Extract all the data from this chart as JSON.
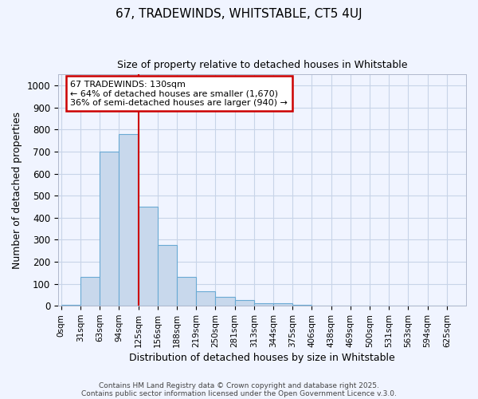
{
  "title1": "67, TRADEWINDS, WHITSTABLE, CT5 4UJ",
  "title2": "Size of property relative to detached houses in Whitstable",
  "xlabel": "Distribution of detached houses by size in Whitstable",
  "ylabel": "Number of detached properties",
  "bin_labels": [
    "0sqm",
    "31sqm",
    "63sqm",
    "94sqm",
    "125sqm",
    "156sqm",
    "188sqm",
    "219sqm",
    "250sqm",
    "281sqm",
    "313sqm",
    "344sqm",
    "375sqm",
    "406sqm",
    "438sqm",
    "469sqm",
    "500sqm",
    "531sqm",
    "563sqm",
    "594sqm",
    "625sqm"
  ],
  "bar_values": [
    5,
    130,
    700,
    780,
    450,
    275,
    130,
    65,
    40,
    25,
    10,
    12,
    5,
    0,
    0,
    0,
    0,
    0,
    0,
    0,
    0
  ],
  "bar_color": "#c8d8ec",
  "bar_edge_color": "#6aaad4",
  "red_line_color": "#cc0000",
  "annotation_text": "67 TRADEWINDS: 130sqm\n← 64% of detached houses are smaller (1,670)\n36% of semi-detached houses are larger (940) →",
  "annotation_box_color": "white",
  "annotation_box_edge": "#cc0000",
  "ylim": [
    0,
    1050
  ],
  "yticks": [
    0,
    100,
    200,
    300,
    400,
    500,
    600,
    700,
    800,
    900,
    1000
  ],
  "footer1": "Contains HM Land Registry data © Crown copyright and database right 2025.",
  "footer2": "Contains public sector information licensed under the Open Government Licence v.3.0.",
  "bg_color": "#f0f4ff",
  "grid_color": "#c8d4e8"
}
